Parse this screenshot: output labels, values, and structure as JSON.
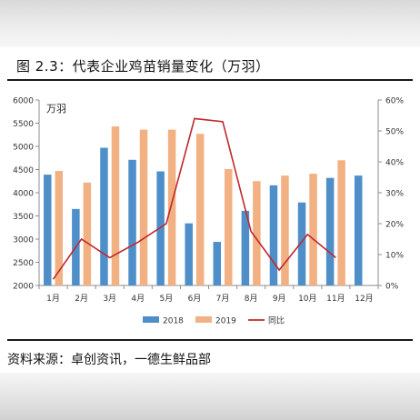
{
  "title": "图 2.3：代表企业鸡苗销量变化（万羽）",
  "source": "资料来源：卓创资讯，一德生鲜品部",
  "chart_data": {
    "type": "bar",
    "unit_label": "万羽",
    "categories": [
      "1月",
      "2月",
      "3月",
      "4月",
      "5月",
      "6月",
      "7月",
      "8月",
      "9月",
      "10月",
      "11月",
      "12月"
    ],
    "series": [
      {
        "name": "2018",
        "type": "bar",
        "axis": "left",
        "color": "#4f8fc9",
        "values": [
          4390,
          3650,
          4970,
          4710,
          4460,
          3340,
          2940,
          3610,
          4160,
          3790,
          4320,
          4370
        ]
      },
      {
        "name": "2019",
        "type": "bar",
        "axis": "left",
        "color": "#f2b183",
        "values": [
          4470,
          4220,
          5430,
          5360,
          5360,
          5270,
          4510,
          4250,
          4370,
          4410,
          4700,
          null
        ]
      },
      {
        "name": "同比",
        "type": "line",
        "axis": "right",
        "color": "#c0282d",
        "values": [
          2.0,
          15.0,
          9.0,
          14.0,
          20.0,
          54.0,
          53.0,
          17.5,
          5.0,
          16.5,
          9.0,
          null
        ]
      }
    ],
    "y_left": {
      "min": 2000,
      "max": 6000,
      "step": 500,
      "ticks": [
        "2000",
        "2500",
        "3000",
        "3500",
        "4000",
        "4500",
        "5000",
        "5500",
        "6000"
      ]
    },
    "y_right": {
      "min": 0,
      "max": 60,
      "step": 10,
      "ticks": [
        "0%",
        "10%",
        "20%",
        "30%",
        "40%",
        "50%",
        "60%"
      ]
    },
    "grid": false,
    "legend_position": "bottom"
  }
}
